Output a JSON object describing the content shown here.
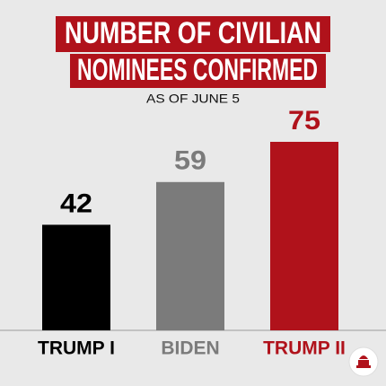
{
  "chart_data": {
    "type": "bar",
    "title": [
      "NUMBER OF CIVILIAN",
      "NOMINEES CONFIRMED"
    ],
    "subtitle": "AS OF JUNE 5",
    "categories": [
      "TRUMP I",
      "BIDEN",
      "TRUMP II"
    ],
    "values": [
      42,
      59,
      75
    ],
    "colors": [
      "#000000",
      "#7b7b7b",
      "#b0121b"
    ],
    "title_color": "#b0121b"
  }
}
